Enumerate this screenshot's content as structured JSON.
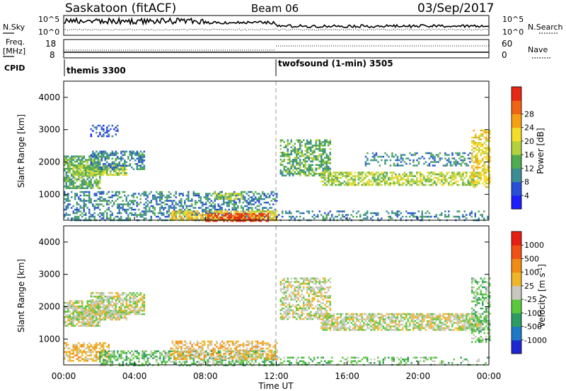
{
  "header": {
    "station": "Saskatoon (fitACF)",
    "beam": "Beam 06",
    "date": "03/Sep/2017"
  },
  "noise_panel": {
    "left_label": "N.Sky",
    "right_label": "N.Search",
    "y_ticks": [
      "10^5",
      "10^0"
    ]
  },
  "freq_panel": {
    "left_label_1": "Freq.",
    "left_label_2": "[MHz]",
    "right_label": "Nave",
    "left_ticks": [
      "18",
      "8"
    ],
    "right_ticks": [
      "60",
      "0"
    ]
  },
  "cpid": {
    "label": "CPID",
    "segments": [
      {
        "name": "themis 3300",
        "start_hour": 0
      },
      {
        "name": "twofsound (1-min) 3505",
        "start_hour": 12
      }
    ]
  },
  "x_axis": {
    "label": "Time UT",
    "ticks": [
      "00:00",
      "04:00",
      "08:00",
      "12:00",
      "16:00",
      "20:00",
      "00:00"
    ]
  },
  "chart_data": [
    {
      "type": "heatmap",
      "title": "Power",
      "ylabel": "Slant Range [km]",
      "xlabel": "Time UT",
      "xlim_hours": [
        0,
        24
      ],
      "ylim": [
        200,
        4500
      ],
      "y_ticks": [
        1000,
        2000,
        3000,
        4000
      ],
      "colorbar": {
        "label": "Power [dB]",
        "ticks": [
          "4",
          "8",
          "12",
          "16",
          "20",
          "24",
          "28"
        ],
        "colors": [
          "#1e1eff",
          "#2850d8",
          "#3c8c96",
          "#50aa50",
          "#b4d23c",
          "#f5dc28",
          "#f5a014",
          "#f06414",
          "#e62814"
        ]
      },
      "bands": [
        {
          "t0": 0.0,
          "t1": 2.0,
          "r0": 1200,
          "r1": 2200,
          "level": 3,
          "density": 0.75
        },
        {
          "t0": 0.5,
          "t1": 3.5,
          "r0": 1600,
          "r1": 1900,
          "level": 4,
          "density": 0.8
        },
        {
          "t0": 1.5,
          "t1": 4.5,
          "r0": 1750,
          "r1": 2350,
          "level": 2,
          "density": 0.55
        },
        {
          "t0": 1.5,
          "t1": 3.0,
          "r0": 2800,
          "r1": 3150,
          "level": 1,
          "density": 0.35
        },
        {
          "t0": 0.0,
          "t1": 12.0,
          "r0": 200,
          "r1": 1100,
          "level": 2,
          "density": 0.45
        },
        {
          "t0": 6.0,
          "t1": 12.0,
          "r0": 200,
          "r1": 500,
          "level": 5,
          "density": 0.7
        },
        {
          "t0": 8.0,
          "t1": 11.5,
          "r0": 200,
          "r1": 420,
          "level": 8,
          "density": 0.55
        },
        {
          "t0": 8.5,
          "t1": 10.0,
          "r0": 850,
          "r1": 1050,
          "level": 4,
          "density": 0.6
        },
        {
          "t0": 12.2,
          "t1": 15.0,
          "r0": 1600,
          "r1": 2700,
          "level": 3,
          "density": 0.6
        },
        {
          "t0": 14.5,
          "t1": 23.5,
          "r0": 1300,
          "r1": 1700,
          "level": 4,
          "density": 0.65
        },
        {
          "t0": 17.0,
          "t1": 23.0,
          "r0": 1900,
          "r1": 2300,
          "level": 2,
          "density": 0.35
        },
        {
          "t0": 12.0,
          "t1": 24.0,
          "r0": 200,
          "r1": 500,
          "level": 2,
          "density": 0.3
        },
        {
          "t0": 23.0,
          "t1": 24.0,
          "r0": 1200,
          "r1": 3000,
          "level": 5,
          "density": 0.5
        }
      ]
    },
    {
      "type": "heatmap",
      "title": "Velocity",
      "ylabel": "Slant Range [km]",
      "xlabel": "Time UT",
      "xlim_hours": [
        0,
        24
      ],
      "ylim": [
        200,
        4500
      ],
      "y_ticks": [
        1000,
        2000,
        3000,
        4000
      ],
      "colorbar": {
        "label": "Velocity [m s^-1]",
        "ticks": [
          "1000",
          "500",
          "100",
          "25",
          "-25",
          "-100",
          "-500",
          "-1000"
        ],
        "colors": [
          "#1e28d2",
          "#1e78c8",
          "#2d9b64",
          "#5ac83c",
          "#c8c8be",
          "#f0b428",
          "#f08c14",
          "#f05014",
          "#e61e14"
        ]
      },
      "bands": [
        {
          "t0": 0.0,
          "t1": 2.0,
          "r0": 1400,
          "r1": 2200,
          "level": 4,
          "density": 0.75
        },
        {
          "t0": 0.5,
          "t1": 3.5,
          "r0": 1600,
          "r1": 1900,
          "level": 4,
          "density": 0.8
        },
        {
          "t0": 1.5,
          "t1": 4.5,
          "r0": 1750,
          "r1": 2450,
          "level": 4,
          "density": 0.7
        },
        {
          "t0": 0.0,
          "t1": 2.5,
          "r0": 300,
          "r1": 900,
          "level": 5,
          "density": 0.55
        },
        {
          "t0": 2.0,
          "t1": 12.0,
          "r0": 200,
          "r1": 650,
          "level": 3,
          "density": 0.55
        },
        {
          "t0": 6.0,
          "t1": 12.0,
          "r0": 350,
          "r1": 950,
          "level": 5,
          "density": 0.5
        },
        {
          "t0": 12.2,
          "t1": 15.0,
          "r0": 1600,
          "r1": 2900,
          "level": 4,
          "density": 0.55
        },
        {
          "t0": 14.5,
          "t1": 23.5,
          "r0": 1300,
          "r1": 1800,
          "level": 4,
          "density": 0.7
        },
        {
          "t0": 12.0,
          "t1": 24.0,
          "r0": 200,
          "r1": 450,
          "level": 3,
          "density": 0.3
        },
        {
          "t0": 23.0,
          "t1": 24.0,
          "r0": 900,
          "r1": 2900,
          "level": 3,
          "density": 0.5
        }
      ]
    }
  ]
}
